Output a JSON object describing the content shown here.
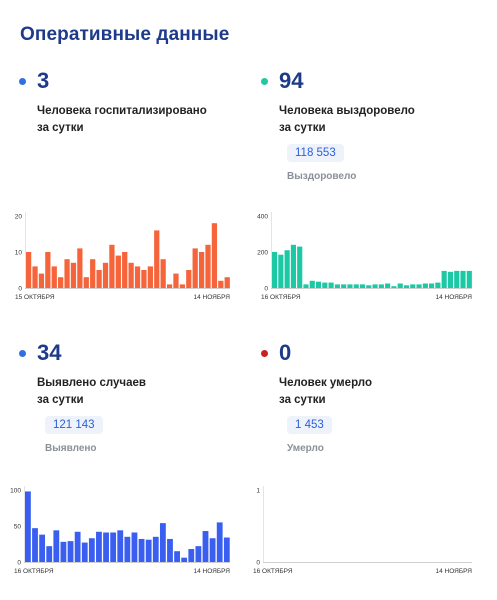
{
  "page": {
    "title": "Оперативные данные"
  },
  "cards": [
    {
      "value": "3",
      "label_line1": "Человека госпитализировано",
      "label_line2": "за сутки",
      "dot_color": "#2f6fe6"
    },
    {
      "value": "94",
      "label_line1": "Человека выздоровело",
      "label_line2": "за сутки",
      "total": "118 553",
      "total_label": "Выздоровело",
      "dot_color": "#1cc9a4"
    },
    {
      "value": "34",
      "label_line1": "Выявлено случаев",
      "label_line2": "за сутки",
      "total": "121 143",
      "total_label": "Выявлено",
      "dot_color": "#2f6fe6"
    },
    {
      "value": "0",
      "label_line1": "Человек умерло",
      "label_line2": "за сутки",
      "total": "1 453",
      "total_label": "Умерло",
      "dot_color": "#cc1f1f"
    }
  ],
  "chart_data": [
    {
      "type": "bar",
      "color": "#f5643a",
      "x_start_label": "15 ОКТЯБРЯ",
      "x_end_label": "14 НОЯБРЯ",
      "yticks": [
        0,
        10,
        20
      ],
      "ylim": [
        0,
        20
      ],
      "values": [
        10,
        6,
        4,
        10,
        6,
        3,
        8,
        7,
        11,
        3,
        8,
        5,
        7,
        12,
        9,
        10,
        7,
        6,
        5,
        6,
        16,
        8,
        1,
        4,
        1,
        5,
        11,
        10,
        12,
        18,
        2,
        3
      ]
    },
    {
      "type": "bar",
      "color": "#1cc9a4",
      "x_start_label": "16 ОКТЯБРЯ",
      "x_end_label": "14 НОЯБРЯ",
      "yticks": [
        0,
        200,
        400
      ],
      "ylim": [
        0,
        400
      ],
      "values": [
        200,
        185,
        210,
        240,
        230,
        20,
        40,
        35,
        30,
        30,
        20,
        20,
        20,
        20,
        20,
        15,
        20,
        20,
        25,
        10,
        25,
        15,
        20,
        20,
        25,
        25,
        30,
        95,
        90,
        95,
        95,
        95
      ]
    },
    {
      "type": "bar",
      "color": "#3a5ff0",
      "x_start_label": "16 ОКТЯБРЯ",
      "x_end_label": "14 НОЯБРЯ",
      "yticks": [
        0,
        50,
        100
      ],
      "ylim": [
        0,
        100
      ],
      "values": [
        98,
        47,
        38,
        22,
        44,
        28,
        29,
        42,
        27,
        33,
        42,
        41,
        41,
        44,
        35,
        41,
        32,
        31,
        35,
        54,
        32,
        15,
        6,
        18,
        22,
        43,
        33,
        55,
        34
      ]
    },
    {
      "type": "bar",
      "color": "#cc1f1f",
      "x_start_label": "16 ОКТЯБРЯ",
      "x_end_label": "14 НОЯБРЯ",
      "yticks": [
        0,
        1
      ],
      "ylim": [
        0,
        1
      ],
      "values": []
    }
  ]
}
